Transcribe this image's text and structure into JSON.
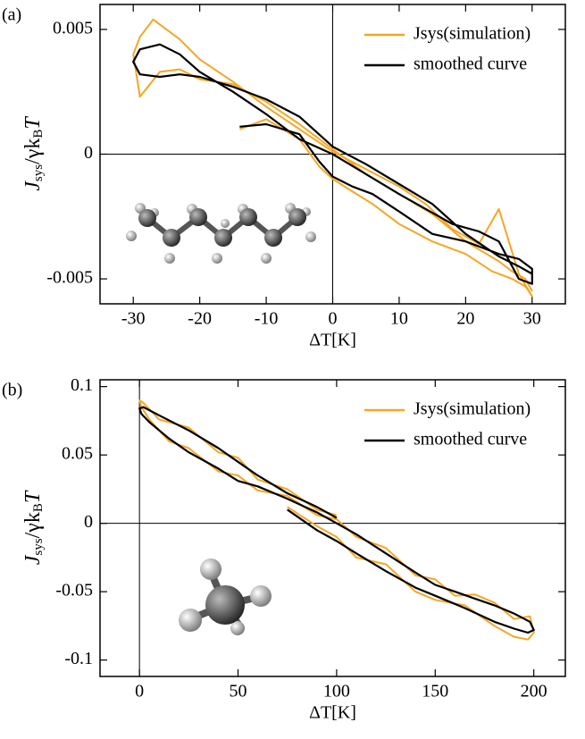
{
  "chart_data": [
    {
      "type": "line",
      "label": "(a)",
      "xlabel": "ΔT[K]",
      "ylabel": [
        "J",
        "sys",
        "/γk",
        "B",
        "T"
      ],
      "xlim": [
        -35,
        35
      ],
      "xticks": [
        -30,
        -20,
        -10,
        0,
        10,
        20,
        30
      ],
      "ylim": [
        -0.006,
        0.006
      ],
      "yticks": [
        -0.005,
        0,
        0.005
      ],
      "zero_lines": true,
      "legend": "upper right",
      "series": [
        {
          "name": "Jsys(simulation)",
          "color": "#f5a623",
          "x": [
            -14,
            -10,
            -5,
            -2,
            0,
            3,
            6,
            10,
            15,
            20,
            24,
            27,
            29,
            30,
            28,
            25,
            22,
            18,
            14,
            10,
            5,
            0,
            -5,
            -10,
            -15,
            -20,
            -23,
            -27,
            -29,
            -30,
            -29,
            -26,
            -23,
            -20,
            -15,
            -10,
            -5,
            0,
            5,
            10,
            15,
            20,
            25,
            27,
            29,
            30
          ],
          "values": [
            0.001,
            0.0014,
            0.0006,
            -0.0005,
            -0.001,
            -0.0015,
            -0.002,
            -0.0028,
            -0.0035,
            -0.004,
            -0.0047,
            -0.005,
            -0.0053,
            -0.0057,
            -0.0048,
            -0.0022,
            -0.0036,
            -0.003,
            -0.002,
            -0.0013,
            -0.0006,
            0.0001,
            0.001,
            0.0019,
            0.0029,
            0.0038,
            0.0046,
            0.0054,
            0.0047,
            0.004,
            0.0023,
            0.0033,
            0.0034,
            0.003,
            0.0028,
            0.0021,
            0.0012,
            0.0002,
            -0.0008,
            -0.0016,
            -0.0024,
            -0.0035,
            -0.0043,
            -0.0047,
            -0.005,
            -0.0055
          ]
        },
        {
          "name": "smoothed curve",
          "color": "#000000",
          "x": [
            -14,
            -10,
            -5,
            -2,
            0,
            3,
            6,
            10,
            15,
            20,
            25,
            28,
            30,
            30,
            28,
            25,
            22,
            18,
            14,
            10,
            5,
            0,
            -5,
            -10,
            -15,
            -20,
            -23,
            -26,
            -29,
            -30,
            -29,
            -26,
            -23,
            -20,
            -15,
            -10,
            -5,
            0,
            5,
            10,
            15,
            20,
            25,
            28,
            30
          ],
          "values": [
            0.0011,
            0.0012,
            0.0008,
            -0.0003,
            -0.0009,
            -0.0013,
            -0.0016,
            -0.0023,
            -0.0032,
            -0.0035,
            -0.004,
            -0.0042,
            -0.0046,
            -0.0052,
            -0.005,
            -0.0035,
            -0.0031,
            -0.0028,
            -0.0022,
            -0.0016,
            -0.0008,
            0.0,
            0.0006,
            0.0016,
            0.0025,
            0.0033,
            0.004,
            0.0044,
            0.0042,
            0.0037,
            0.0032,
            0.0031,
            0.0032,
            0.0031,
            0.0027,
            0.0022,
            0.0015,
            0.0003,
            -0.0004,
            -0.0012,
            -0.002,
            -0.0032,
            -0.0041,
            -0.0045,
            -0.0048
          ]
        }
      ]
    },
    {
      "type": "line",
      "label": "(b)",
      "xlabel": "ΔT[K]",
      "ylabel": [
        "J",
        "sys",
        "/γk",
        "B",
        "T"
      ],
      "xlim": [
        -20,
        216
      ],
      "xticks": [
        0,
        50,
        100,
        150,
        200
      ],
      "ylim": [
        -0.112,
        0.105
      ],
      "yticks": [
        -0.1,
        -0.05,
        0,
        0.05,
        0.1
      ],
      "zero_lines": true,
      "legend": "upper right",
      "series": [
        {
          "name": "Jsys(simulation)",
          "color": "#f5a623",
          "x": [
            75,
            90,
            100,
            110,
            125,
            140,
            150,
            165,
            180,
            190,
            197,
            200,
            198,
            190,
            180,
            170,
            160,
            150,
            140,
            125,
            110,
            100,
            90,
            75,
            60,
            50,
            40,
            25,
            15,
            5,
            1,
            0,
            2,
            10,
            25,
            40,
            50,
            60,
            75,
            90,
            100
          ],
          "values": [
            0.012,
            -0.002,
            -0.01,
            -0.025,
            -0.03,
            -0.05,
            -0.056,
            -0.06,
            -0.075,
            -0.083,
            -0.085,
            -0.08,
            -0.068,
            -0.07,
            -0.058,
            -0.052,
            -0.053,
            -0.041,
            -0.038,
            -0.018,
            -0.01,
            0.003,
            0.006,
            0.02,
            0.024,
            0.035,
            0.038,
            0.055,
            0.06,
            0.076,
            0.085,
            0.09,
            0.088,
            0.076,
            0.07,
            0.052,
            0.048,
            0.032,
            0.025,
            0.01,
            0.006
          ]
        },
        {
          "name": "smoothed curve",
          "color": "#000000",
          "x": [
            75,
            90,
            100,
            110,
            125,
            140,
            150,
            165,
            180,
            190,
            197,
            200,
            198,
            190,
            180,
            170,
            160,
            150,
            140,
            125,
            110,
            100,
            90,
            75,
            60,
            50,
            40,
            25,
            15,
            5,
            1,
            0,
            2,
            10,
            25,
            40,
            50,
            60,
            75,
            90,
            100
          ],
          "values": [
            0.01,
            -0.005,
            -0.013,
            -0.022,
            -0.035,
            -0.047,
            -0.053,
            -0.062,
            -0.072,
            -0.077,
            -0.08,
            -0.078,
            -0.072,
            -0.066,
            -0.06,
            -0.055,
            -0.05,
            -0.045,
            -0.036,
            -0.022,
            -0.008,
            0.0,
            0.008,
            0.018,
            0.027,
            0.031,
            0.04,
            0.052,
            0.062,
            0.074,
            0.08,
            0.084,
            0.085,
            0.079,
            0.068,
            0.055,
            0.045,
            0.035,
            0.022,
            0.012,
            0.004
          ]
        }
      ]
    }
  ]
}
